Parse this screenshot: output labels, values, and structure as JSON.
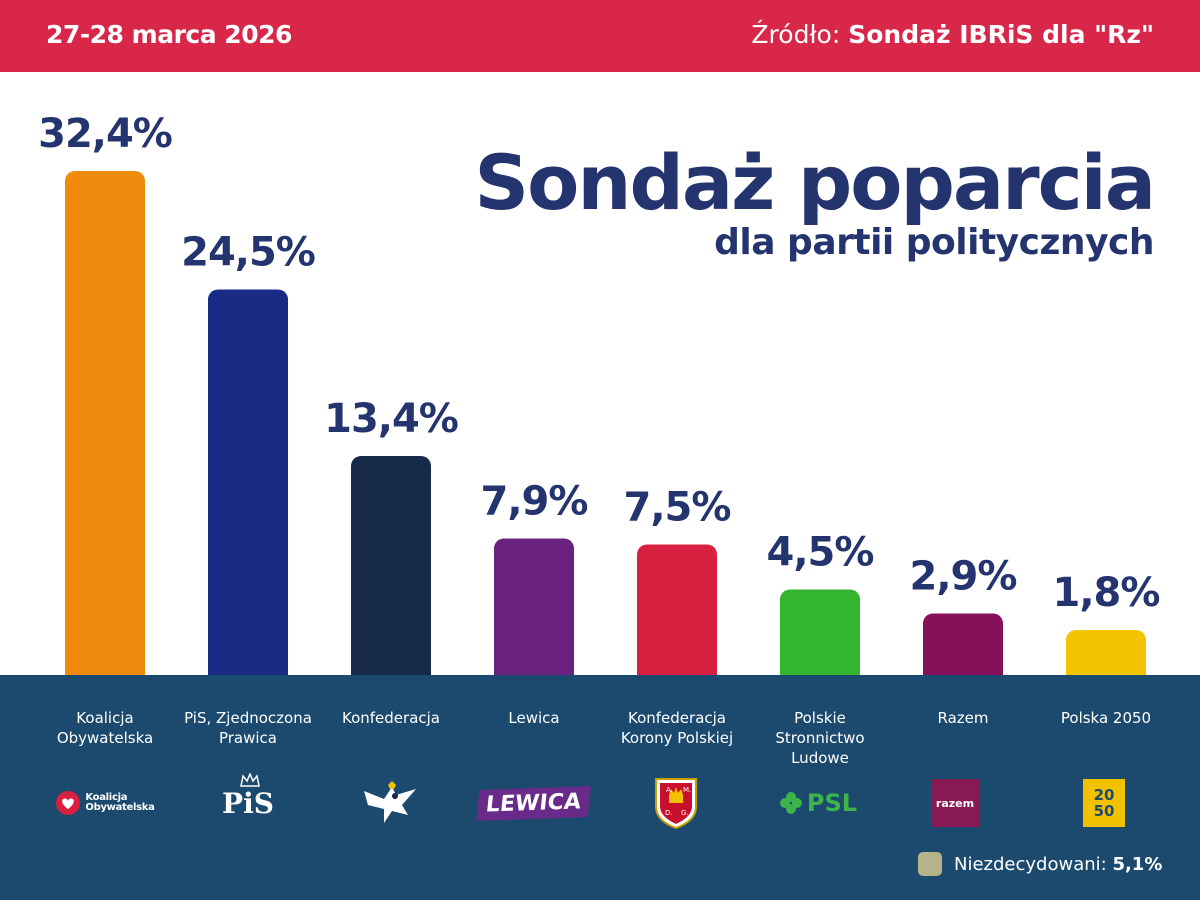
{
  "header": {
    "date": "27-28 marca 2026",
    "source_prefix": "Źródło:",
    "source_name": "Sondaż IBRiS dla \"Rz\""
  },
  "title": "Sondaż poparcia",
  "subtitle": "dla partii politycznych",
  "chart_data": {
    "type": "bar",
    "title": "Sondaż poparcia",
    "subtitle": "dla partii politycznych",
    "categories": [
      "Koalicja Obywatelska",
      "PiS, Zjednoczona Prawica",
      "Konfederacja",
      "Lewica",
      "Konfederacja Korony Polskiej",
      "Polskie Stronnictwo Ludowe",
      "Razem",
      "Polska 2050"
    ],
    "values": [
      32.4,
      24.5,
      13.4,
      7.9,
      7.5,
      4.5,
      2.9,
      1.8
    ],
    "value_labels": [
      "32,4%",
      "24,5%",
      "13,4%",
      "7,9%",
      "7,5%",
      "4,5%",
      "2,9%",
      "1,8%"
    ],
    "colors": [
      "#f08a0c",
      "#1a2b85",
      "#172a4a",
      "#69237f",
      "#d82040",
      "#34b530",
      "#861059",
      "#f5c400"
    ],
    "grid": false,
    "legend_position": "bottom-right"
  },
  "category_lines": [
    [
      "Koalicja",
      "Obywatelska"
    ],
    [
      "PiS, Zjednoczona",
      "Prawica"
    ],
    [
      "Konfederacja"
    ],
    [
      "Lewica"
    ],
    [
      "Konfederacja",
      "Korony Polskiej"
    ],
    [
      "Polskie",
      "Stronnictwo",
      "Ludowe"
    ],
    [
      "Razem"
    ],
    [
      "Polska 2050"
    ]
  ],
  "logos": {
    "ko_line1": "Koalicja",
    "ko_line2": "Obywatelska",
    "pis": "PiS",
    "lewica": "LEWICA",
    "kkp_letters": [
      "A.",
      "M.",
      "D.",
      "G."
    ],
    "psl": "PSL",
    "razem": "razem",
    "p2050_top": "20",
    "p2050_bottom": "50"
  },
  "legend": {
    "label": "Niezdecydowani:",
    "value": "5,1%",
    "color": "#b5b38a"
  }
}
